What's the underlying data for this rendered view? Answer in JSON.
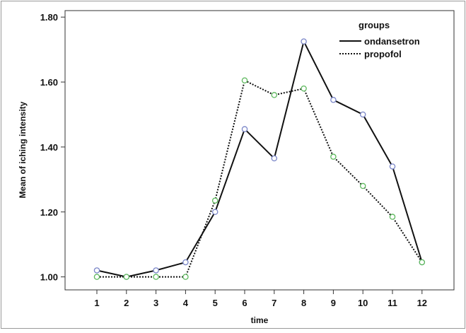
{
  "chart_data": {
    "type": "line",
    "xlabel": "time",
    "ylabel": "Mean of iching intensity",
    "categories": [
      "1",
      "2",
      "3",
      "4",
      "5",
      "6",
      "7",
      "8",
      "9",
      "10",
      "11",
      "12"
    ],
    "y_ticks": [
      "1.00",
      "1.20",
      "1.40",
      "1.60",
      "1.80"
    ],
    "ylim": [
      0.96,
      1.82
    ],
    "legend": {
      "title": "groups",
      "position": "top-right"
    },
    "series": [
      {
        "name": "ondansetron",
        "line_style": "solid",
        "marker_color": "#7a86c8",
        "values": [
          1.02,
          1.0,
          1.02,
          1.045,
          1.2,
          1.455,
          1.365,
          1.725,
          1.545,
          1.5,
          1.34,
          1.045
        ]
      },
      {
        "name": "propofol",
        "line_style": "dotted",
        "marker_color": "#5cb85c",
        "values": [
          1.0,
          1.0,
          1.0,
          1.0,
          1.235,
          1.605,
          1.56,
          1.58,
          1.37,
          1.28,
          1.185,
          1.045
        ]
      }
    ],
    "grid": false
  }
}
